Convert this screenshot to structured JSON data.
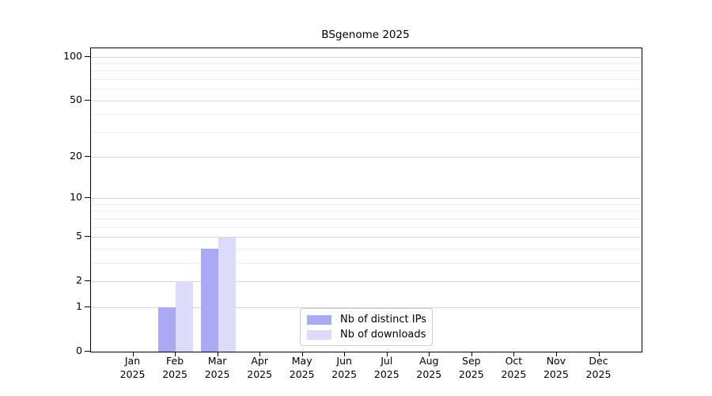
{
  "title": "BSgenome 2025",
  "colors": {
    "distinct_ips": "#a9a9f4",
    "downloads": "#dcdcfa",
    "grid_major": "#d6d6d6",
    "grid_minor": "#eeeeee",
    "axis": "#000000",
    "legend_border": "#cccccc",
    "background": "#ffffff"
  },
  "chart_data": {
    "type": "bar",
    "title": "BSgenome 2025",
    "categories": [
      "Jan",
      "Feb",
      "Mar",
      "Apr",
      "May",
      "Jun",
      "Jul",
      "Aug",
      "Sep",
      "Oct",
      "Nov",
      "Dec"
    ],
    "year_label": "2025",
    "series": [
      {
        "name": "Nb of distinct IPs",
        "color": "#a9a9f4",
        "values": [
          0,
          1,
          4,
          0,
          0,
          0,
          0,
          0,
          0,
          0,
          0,
          0
        ]
      },
      {
        "name": "Nb of downloads",
        "color": "#dcdcfa",
        "values": [
          0,
          2,
          5,
          0,
          0,
          0,
          0,
          0,
          0,
          0,
          0,
          0
        ]
      }
    ],
    "xlabel": "",
    "ylabel": "",
    "yscale": "log1p",
    "ylim": [
      0,
      100
    ],
    "yticks": [
      0,
      1,
      2,
      5,
      10,
      20,
      50,
      100
    ],
    "minor_yticks": [
      3,
      4,
      6,
      7,
      8,
      9,
      30,
      40,
      60,
      70,
      80,
      90
    ],
    "grid": true,
    "legend_position": "bottom-center"
  },
  "legend": {
    "items": [
      {
        "label": "Nb of distinct IPs"
      },
      {
        "label": "Nb of downloads"
      }
    ]
  }
}
